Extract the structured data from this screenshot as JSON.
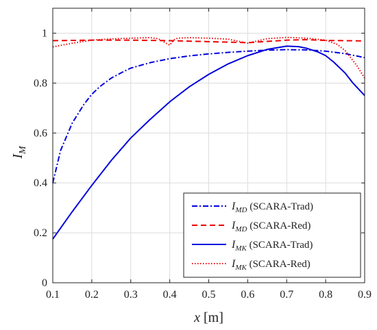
{
  "chart_data": {
    "type": "line",
    "xlim": [
      0.1,
      0.9
    ],
    "ylim": [
      0,
      1.1
    ],
    "xticks": [
      0.1,
      0.2,
      0.3,
      0.4,
      0.5,
      0.6,
      0.7,
      0.8,
      0.9
    ],
    "yticks": [
      0,
      0.2,
      0.4,
      0.6,
      0.8,
      1
    ],
    "xtick_labels": [
      "0.1",
      "0.2",
      "0.3",
      "0.4",
      "0.5",
      "0.6",
      "0.7",
      "0.8",
      "0.9"
    ],
    "ytick_labels": [
      "0",
      "0.2",
      "0.4",
      "0.6",
      "0.8",
      "1"
    ],
    "xlabel": {
      "symbol": "x",
      "unit": " [m]"
    },
    "ylabel": {
      "symbol": "I",
      "sub": "M"
    },
    "grid": true,
    "legend_position": "bottom-right",
    "series": [
      {
        "name": "I_MD (SCARA-Trad)",
        "legend": {
          "symbol": "I",
          "sub": "MD",
          "text": " (SCARA-Trad)"
        },
        "color": "#0000dd",
        "dash": "dashdot",
        "x": [
          0.1,
          0.12,
          0.15,
          0.18,
          0.2,
          0.22,
          0.25,
          0.28,
          0.3,
          0.35,
          0.4,
          0.45,
          0.5,
          0.55,
          0.6,
          0.65,
          0.7,
          0.75,
          0.8,
          0.85,
          0.9
        ],
        "y": [
          0.4,
          0.53,
          0.64,
          0.715,
          0.755,
          0.785,
          0.82,
          0.845,
          0.86,
          0.882,
          0.898,
          0.909,
          0.917,
          0.923,
          0.928,
          0.932,
          0.934,
          0.933,
          0.928,
          0.918,
          0.902
        ]
      },
      {
        "name": "I_MD (SCARA-Red)",
        "legend": {
          "symbol": "I",
          "sub": "MD",
          "text": " (SCARA-Red)"
        },
        "color": "#ee0000",
        "dash": "dashed",
        "x": [
          0.1,
          0.2,
          0.3,
          0.4,
          0.5,
          0.6,
          0.7,
          0.75,
          0.8,
          0.9
        ],
        "y": [
          0.97,
          0.972,
          0.972,
          0.97,
          0.966,
          0.962,
          0.972,
          0.974,
          0.971,
          0.969
        ]
      },
      {
        "name": "I_MK (SCARA-Trad)",
        "legend": {
          "symbol": "I",
          "sub": "MK",
          "text": " (SCARA-Trad)"
        },
        "color": "#0000dd",
        "dash": "solid",
        "x": [
          0.1,
          0.15,
          0.2,
          0.25,
          0.3,
          0.35,
          0.4,
          0.45,
          0.5,
          0.55,
          0.6,
          0.65,
          0.7,
          0.73,
          0.75,
          0.78,
          0.8,
          0.82,
          0.85,
          0.87,
          0.9
        ],
        "y": [
          0.175,
          0.285,
          0.39,
          0.49,
          0.58,
          0.655,
          0.725,
          0.785,
          0.835,
          0.877,
          0.91,
          0.935,
          0.948,
          0.946,
          0.94,
          0.925,
          0.91,
          0.885,
          0.84,
          0.8,
          0.75
        ]
      },
      {
        "name": "I_MK (SCARA-Red)",
        "legend": {
          "symbol": "I",
          "sub": "MK",
          "text": " (SCARA-Red)"
        },
        "color": "#ee0000",
        "dash": "dotted",
        "x": [
          0.1,
          0.15,
          0.2,
          0.25,
          0.3,
          0.35,
          0.37,
          0.38,
          0.39,
          0.4,
          0.41,
          0.42,
          0.45,
          0.5,
          0.55,
          0.6,
          0.65,
          0.7,
          0.75,
          0.8,
          0.83,
          0.85,
          0.88,
          0.9
        ],
        "y": [
          0.945,
          0.96,
          0.972,
          0.977,
          0.98,
          0.982,
          0.978,
          0.97,
          0.96,
          0.952,
          0.972,
          0.98,
          0.982,
          0.98,
          0.976,
          0.96,
          0.978,
          0.983,
          0.98,
          0.972,
          0.955,
          0.93,
          0.87,
          0.82
        ]
      }
    ]
  }
}
